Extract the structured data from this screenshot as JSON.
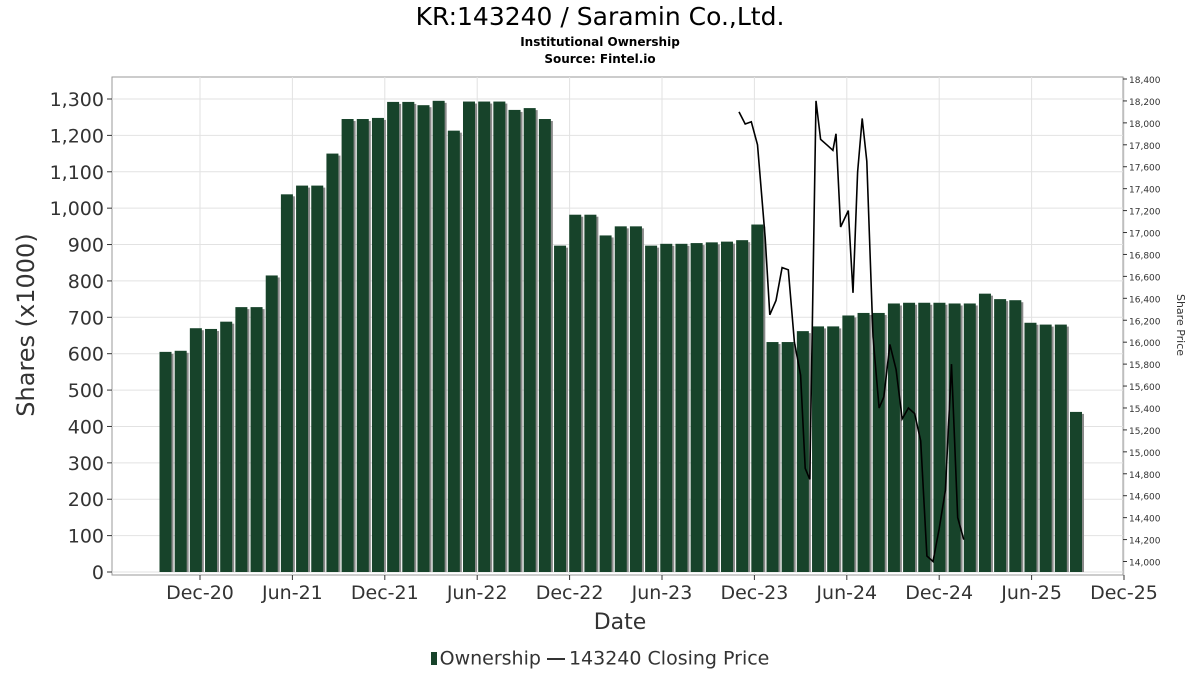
{
  "title": "KR:143240 / Saramin Co.,Ltd.",
  "subtitle": "Institutional Ownership",
  "source": "Source: Fintel.io",
  "legend": {
    "bar_label": "Ownership",
    "line_label": "143240 Closing Price"
  },
  "colors": {
    "bar": "#17432a",
    "bar_shadow": "#8a8a8a",
    "line": "#000000",
    "grid": "#e2e2e2",
    "axis": "#000000"
  },
  "chart_data": {
    "type": "bar",
    "xlabel": "Date",
    "ylabel": "Shares (x1000)",
    "y2label": "Share Price",
    "ylim": [
      0,
      1390
    ],
    "y2lim": [
      13900,
      18400
    ],
    "yticks": [
      "0",
      "100",
      "200",
      "300",
      "400",
      "500",
      "600",
      "700",
      "800",
      "900",
      "1,000",
      "1,100",
      "1,200",
      "1,300"
    ],
    "y2ticks": [
      "14,000",
      "14,200",
      "14,400",
      "14,600",
      "14,800",
      "15,000",
      "15,200",
      "15,400",
      "15,600",
      "15,800",
      "16,000",
      "16,200",
      "16,400",
      "16,600",
      "16,800",
      "17,000",
      "17,200",
      "17,400",
      "17,600",
      "17,800",
      "18,000",
      "18,200",
      "18,400"
    ],
    "xticks": [
      "Dec-20",
      "Jun-21",
      "Dec-21",
      "Jun-22",
      "Dec-22",
      "Jun-23",
      "Dec-23",
      "Jun-24",
      "Dec-24",
      "Jun-25",
      "Dec-25"
    ],
    "grid": true,
    "legend_position": "bottom",
    "series": [
      {
        "name": "Ownership",
        "type": "bar",
        "values": [
          605,
          608,
          670,
          668,
          688,
          728,
          728,
          815,
          1038,
          1062,
          1062,
          1150,
          1245,
          1245,
          1248,
          1292,
          1292,
          1283,
          1295,
          1213,
          1293,
          1293,
          1293,
          1270,
          1275,
          1245,
          897,
          982,
          982,
          925,
          950,
          950,
          897,
          902,
          902,
          904,
          906,
          908,
          912,
          955,
          632,
          632,
          662,
          675,
          675,
          705,
          712,
          712,
          738,
          740,
          740,
          740,
          738,
          738,
          765,
          750,
          747,
          685,
          680,
          680,
          440
        ]
      },
      {
        "name": "143240 Closing Price",
        "type": "line",
        "points": [
          [
            71.0,
            18100
          ],
          [
            71.4,
            17990
          ],
          [
            71.8,
            18010
          ],
          [
            72.2,
            17800
          ],
          [
            72.7,
            16950
          ],
          [
            73.0,
            16250
          ],
          [
            73.4,
            16380
          ],
          [
            73.8,
            16680
          ],
          [
            74.2,
            16660
          ],
          [
            74.6,
            16000
          ],
          [
            75.0,
            15700
          ],
          [
            75.3,
            14850
          ],
          [
            75.6,
            14750
          ],
          [
            76.0,
            18200
          ],
          [
            76.3,
            17850
          ],
          [
            76.7,
            17800
          ],
          [
            77.1,
            17750
          ],
          [
            77.3,
            17900
          ],
          [
            77.6,
            17050
          ],
          [
            78.1,
            17200
          ],
          [
            78.4,
            16450
          ],
          [
            78.7,
            17550
          ],
          [
            79.0,
            18040
          ],
          [
            79.3,
            17650
          ],
          [
            79.7,
            16050
          ],
          [
            80.1,
            15400
          ],
          [
            80.4,
            15500
          ],
          [
            80.8,
            15980
          ],
          [
            81.2,
            15750
          ],
          [
            81.6,
            15300
          ],
          [
            82.0,
            15400
          ],
          [
            82.4,
            15350
          ],
          [
            82.8,
            15100
          ],
          [
            83.2,
            14050
          ],
          [
            83.6,
            14000
          ],
          [
            84.0,
            14300
          ],
          [
            84.4,
            14650
          ],
          [
            84.8,
            15800
          ],
          [
            85.2,
            14400
          ],
          [
            85.6,
            14200
          ]
        ]
      }
    ],
    "x_axis_months": {
      "first_tick_month": 36,
      "tick_step_months": 6
    }
  }
}
